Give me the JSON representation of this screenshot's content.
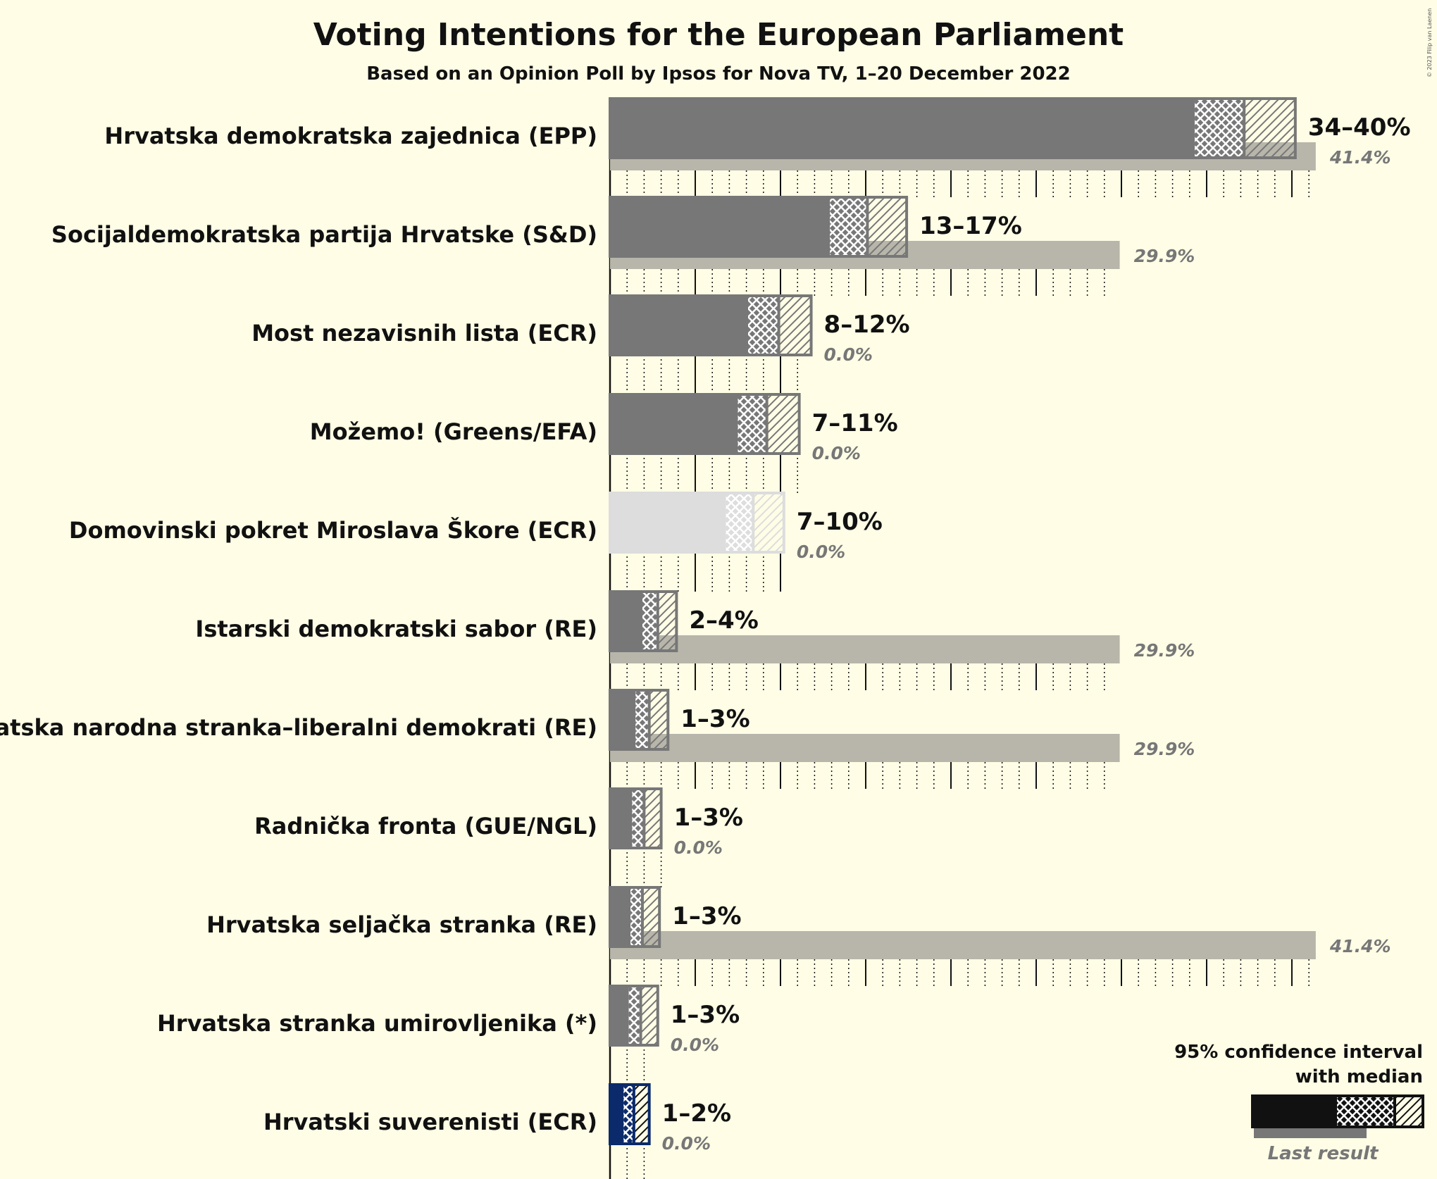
{
  "chart_data": {
    "type": "bar",
    "title": "Voting Intentions for the European Parliament",
    "subtitle": "Based on an Opinion Poll by Ipsos for Nova TV, 1–20 December 2022",
    "copyright": "© 2023 Filip van Laenen",
    "x_range": [
      0,
      42
    ],
    "gridlines_major_every": 5,
    "gridlines_minor_every": 1,
    "parties": [
      {
        "name": "Hrvatska demokratska zajednica (EPP)",
        "low": 34.3,
        "median": 37.2,
        "high": 40.2,
        "range_label": "34–40%",
        "last_result": 41.4,
        "last_label": "41.4%",
        "color": "#777777"
      },
      {
        "name": "Socijaldemokratska partija Hrvatske (S&D)",
        "low": 12.9,
        "median": 15.1,
        "high": 17.4,
        "range_label": "13–17%",
        "last_result": 29.9,
        "last_label": "29.9%",
        "color": "#777777"
      },
      {
        "name": "Most nezavisnih lista (ECR)",
        "low": 8.1,
        "median": 9.9,
        "high": 11.8,
        "range_label": "8–12%",
        "last_result": 0.0,
        "last_label": "0.0%",
        "color": "#777777"
      },
      {
        "name": "Možemo! (Greens/EFA)",
        "low": 7.5,
        "median": 9.2,
        "high": 11.1,
        "range_label": "7–11%",
        "last_result": 0.0,
        "last_label": "0.0%",
        "color": "#777777"
      },
      {
        "name": "Domovinski pokret Miroslava Škore (ECR)",
        "low": 6.8,
        "median": 8.4,
        "high": 10.2,
        "range_label": "7–10%",
        "last_result": 0.0,
        "last_label": "0.0%",
        "color": "#dddddd"
      },
      {
        "name": "Istarski demokratski sabor (RE)",
        "low": 1.9,
        "median": 2.8,
        "high": 3.9,
        "range_label": "2–4%",
        "last_result": 29.9,
        "last_label": "29.9%",
        "color": "#777777"
      },
      {
        "name": "Hrvatska narodna stranka–liberalni demokrati (RE)",
        "low": 1.5,
        "median": 2.3,
        "high": 3.4,
        "range_label": "1–3%",
        "last_result": 29.9,
        "last_label": "29.9%",
        "color": "#777777"
      },
      {
        "name": "Radnička fronta (GUE/NGL)",
        "low": 1.3,
        "median": 2.0,
        "high": 3.0,
        "range_label": "1–3%",
        "last_result": 0.0,
        "last_label": "0.0%",
        "color": "#777777"
      },
      {
        "name": "Hrvatska seljačka stranka (RE)",
        "low": 1.2,
        "median": 1.9,
        "high": 2.9,
        "range_label": "1–3%",
        "last_result": 41.4,
        "last_label": "41.4%",
        "color": "#777777"
      },
      {
        "name": "Hrvatska stranka umirovljenika (*)",
        "low": 1.1,
        "median": 1.8,
        "high": 2.8,
        "range_label": "1–3%",
        "last_result": 0.0,
        "last_label": "0.0%",
        "color": "#777777"
      },
      {
        "name": "Hrvatski suverenisti (ECR)",
        "low": 0.8,
        "median": 1.4,
        "high": 2.3,
        "range_label": "1–2%",
        "last_result": 0.0,
        "last_label": "0.0%",
        "color": "#0b2a6b"
      }
    ],
    "legend": {
      "line1": "95% confidence interval",
      "line2": "with median",
      "last_result": "Last result"
    }
  }
}
